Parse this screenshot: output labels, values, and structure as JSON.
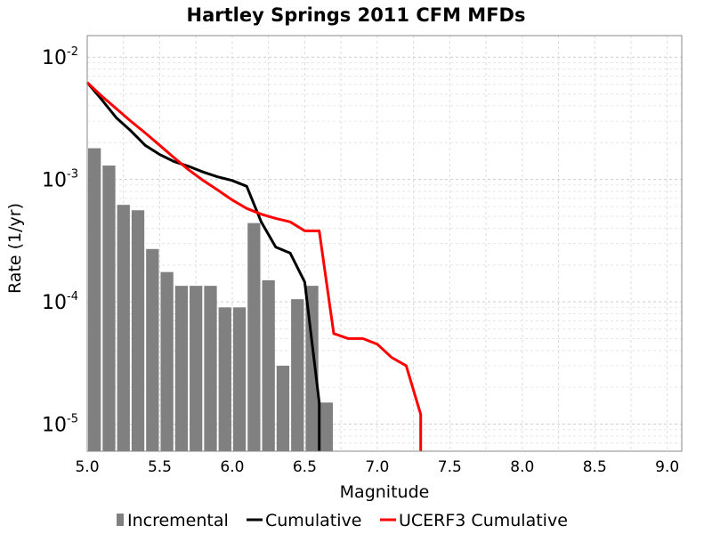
{
  "chart_data": {
    "type": "bar",
    "title": "Hartley Springs 2011 CFM MFDs",
    "xlabel": "Magnitude",
    "ylabel": "Rate (1/yr)",
    "xlim": [
      5.0,
      9.1
    ],
    "ylim": [
      6e-06,
      0.015
    ],
    "yscale": "log",
    "grid": true,
    "legend_position": "bottom",
    "x_ticks": [
      "5.0",
      "5.5",
      "6.0",
      "6.5",
      "7.0",
      "7.5",
      "8.0",
      "8.5",
      "9.0"
    ],
    "y_ticks": [
      {
        "base": "10",
        "exp": "-2",
        "value": 0.01
      },
      {
        "base": "10",
        "exp": "-3",
        "value": 0.001
      },
      {
        "base": "10",
        "exp": "-4",
        "value": 0.0001
      },
      {
        "base": "10",
        "exp": "-5",
        "value": 1e-05
      }
    ],
    "series": [
      {
        "name": "Incremental",
        "kind": "bar",
        "color": "#808080",
        "x": [
          5.05,
          5.15,
          5.25,
          5.35,
          5.45,
          5.55,
          5.65,
          5.75,
          5.85,
          5.95,
          6.05,
          6.15,
          6.25,
          6.35,
          6.45,
          6.55,
          6.65
        ],
        "values": [
          0.0018,
          0.0013,
          0.00062,
          0.00056,
          0.00027,
          0.000175,
          0.000135,
          0.000135,
          0.000135,
          9e-05,
          9e-05,
          0.00044,
          0.00015,
          3e-05,
          0.000105,
          0.000135,
          1.5e-05
        ]
      },
      {
        "name": "Cumulative",
        "kind": "line",
        "color": "#000000",
        "x": [
          5.0,
          5.1,
          5.2,
          5.3,
          5.4,
          5.5,
          5.6,
          5.7,
          5.8,
          5.9,
          6.0,
          6.1,
          6.2,
          6.3,
          6.4,
          6.5,
          6.6,
          6.6
        ],
        "values": [
          0.0062,
          0.0045,
          0.0032,
          0.0025,
          0.0019,
          0.0016,
          0.0014,
          0.00128,
          0.00115,
          0.00105,
          0.00098,
          0.00088,
          0.00045,
          0.00028,
          0.00025,
          0.000145,
          1.5e-05,
          6e-06
        ]
      },
      {
        "name": "UCERF3 Cumulative",
        "kind": "line",
        "color": "#ff0000",
        "x": [
          5.0,
          5.1,
          5.2,
          5.3,
          5.4,
          5.5,
          5.6,
          5.7,
          5.8,
          5.9,
          6.0,
          6.1,
          6.2,
          6.3,
          6.4,
          6.5,
          6.6,
          6.7,
          6.8,
          6.9,
          7.0,
          7.1,
          7.2,
          7.3,
          7.3
        ],
        "values": [
          0.0062,
          0.0048,
          0.0038,
          0.003,
          0.0024,
          0.0019,
          0.0015,
          0.0012,
          0.00098,
          0.00082,
          0.00068,
          0.00058,
          0.00052,
          0.00048,
          0.00045,
          0.00038,
          0.00038,
          5.5e-05,
          5e-05,
          5e-05,
          4.5e-05,
          3.5e-05,
          3e-05,
          1.2e-05,
          6e-06
        ]
      }
    ]
  }
}
